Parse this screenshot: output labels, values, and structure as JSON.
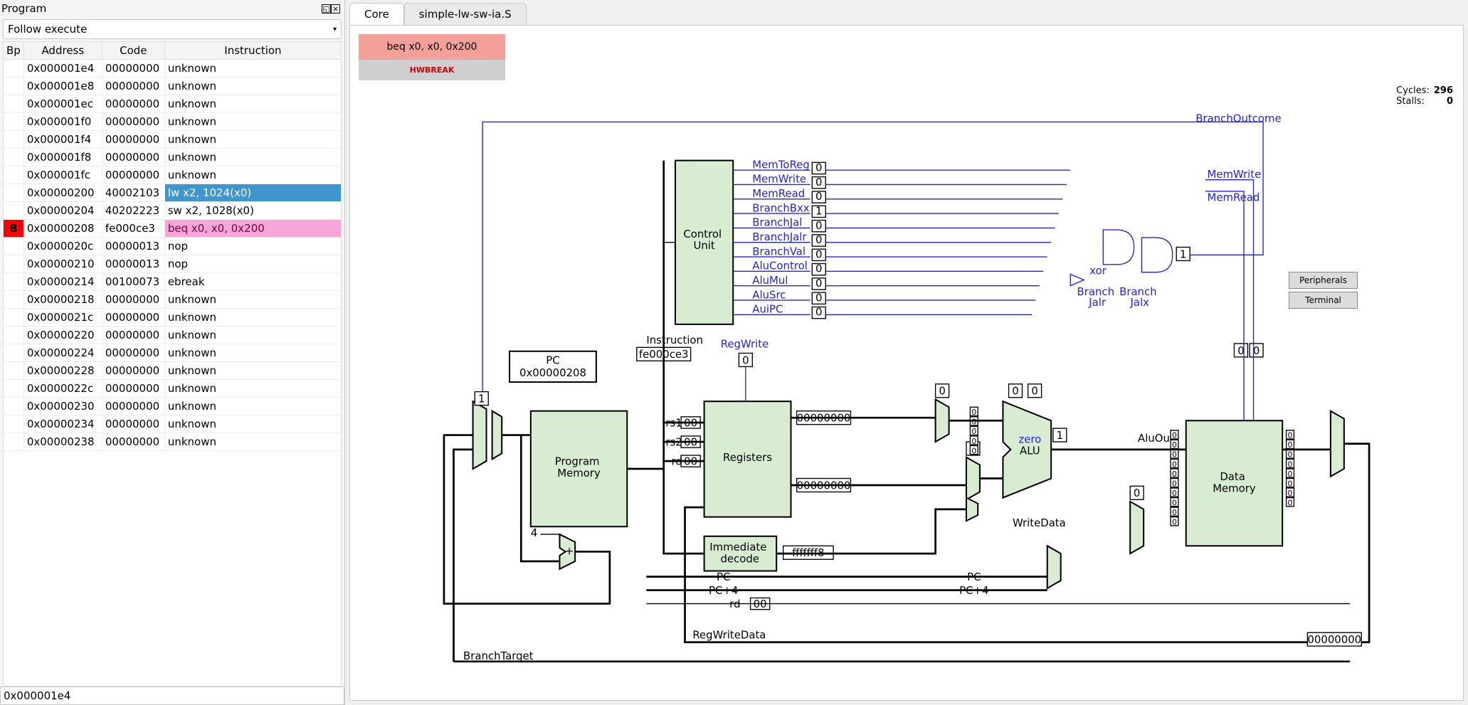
{
  "left_panel": {
    "title": "Program",
    "follow_selected": "Follow execute",
    "headers": {
      "bp": "Bp",
      "addr": "Address",
      "code": "Code",
      "instr": "Instruction"
    },
    "rows": [
      {
        "bp": "",
        "addr": "0x000001e4",
        "code": "00000000",
        "instr": "unknown",
        "hl": ""
      },
      {
        "bp": "",
        "addr": "0x000001e8",
        "code": "00000000",
        "instr": "unknown",
        "hl": ""
      },
      {
        "bp": "",
        "addr": "0x000001ec",
        "code": "00000000",
        "instr": "unknown",
        "hl": ""
      },
      {
        "bp": "",
        "addr": "0x000001f0",
        "code": "00000000",
        "instr": "unknown",
        "hl": ""
      },
      {
        "bp": "",
        "addr": "0x000001f4",
        "code": "00000000",
        "instr": "unknown",
        "hl": ""
      },
      {
        "bp": "",
        "addr": "0x000001f8",
        "code": "00000000",
        "instr": "unknown",
        "hl": ""
      },
      {
        "bp": "",
        "addr": "0x000001fc",
        "code": "00000000",
        "instr": "unknown",
        "hl": ""
      },
      {
        "bp": "",
        "addr": "0x00000200",
        "code": "40002103",
        "instr": "lw x2, 1024(x0)",
        "hl": "blue"
      },
      {
        "bp": "",
        "addr": "0x00000204",
        "code": "40202223",
        "instr": "sw x2, 1028(x0)",
        "hl": ""
      },
      {
        "bp": "B",
        "addr": "0x00000208",
        "code": "fe000ce3",
        "instr": "beq x0, x0, 0x200",
        "hl": "pink"
      },
      {
        "bp": "",
        "addr": "0x0000020c",
        "code": "00000013",
        "instr": "nop",
        "hl": ""
      },
      {
        "bp": "",
        "addr": "0x00000210",
        "code": "00000013",
        "instr": "nop",
        "hl": ""
      },
      {
        "bp": "",
        "addr": "0x00000214",
        "code": "00100073",
        "instr": "ebreak",
        "hl": ""
      },
      {
        "bp": "",
        "addr": "0x00000218",
        "code": "00000000",
        "instr": "unknown",
        "hl": ""
      },
      {
        "bp": "",
        "addr": "0x0000021c",
        "code": "00000000",
        "instr": "unknown",
        "hl": ""
      },
      {
        "bp": "",
        "addr": "0x00000220",
        "code": "00000000",
        "instr": "unknown",
        "hl": ""
      },
      {
        "bp": "",
        "addr": "0x00000224",
        "code": "00000000",
        "instr": "unknown",
        "hl": ""
      },
      {
        "bp": "",
        "addr": "0x00000228",
        "code": "00000000",
        "instr": "unknown",
        "hl": ""
      },
      {
        "bp": "",
        "addr": "0x0000022c",
        "code": "00000000",
        "instr": "unknown",
        "hl": ""
      },
      {
        "bp": "",
        "addr": "0x00000230",
        "code": "00000000",
        "instr": "unknown",
        "hl": ""
      },
      {
        "bp": "",
        "addr": "0x00000234",
        "code": "00000000",
        "instr": "unknown",
        "hl": ""
      },
      {
        "bp": "",
        "addr": "0x00000238",
        "code": "00000000",
        "instr": "unknown",
        "hl": ""
      }
    ],
    "bottom_value": "0x000001e4"
  },
  "tabs": {
    "active": "Core",
    "other": "simple-lw-sw-ia.S"
  },
  "banner": {
    "current_instr": "beq x0, x0, 0x200",
    "status": "HWBREAK"
  },
  "stats": {
    "cycles_label": "Cycles:",
    "cycles": "296",
    "stalls_label": "Stalls:",
    "stalls": "0"
  },
  "peripherals": {
    "p": "Peripherals",
    "t": "Terminal"
  },
  "diagram": {
    "colors": {
      "block_fill": "#d8ecd2",
      "wire_blue": "#2020f0",
      "wire_black": "#000000",
      "bg": "#ffffff",
      "banner_instr": "#f3a09a",
      "banner_hw": "#cfcfcf",
      "banner_hw_text": "#d00000"
    },
    "pc": {
      "label": "PC",
      "value": "0x00000208"
    },
    "blocks": {
      "control_unit": "Control\nUnit",
      "program_memory": "Program\nMemory",
      "registers": "Registers",
      "immediate_decode": "Immediate\ndecode",
      "alu": "ALU",
      "data_memory": "Data\nMemory"
    },
    "signals": {
      "control_out": [
        "MemToReg",
        "MemWrite",
        "MemRead",
        "BranchBxx",
        "BranchJal",
        "BranchJalr",
        "BranchVal",
        "AluControl",
        "AluMul",
        "AluSrc",
        "AuiPC"
      ],
      "instruction": "Instruction",
      "regwrite": "RegWrite",
      "rs1": "rs1",
      "rs2": "rs2",
      "rd": "rd",
      "zero": "zero",
      "writedata": "WriteData",
      "aluout": "AluOut",
      "pc": "PC",
      "pc4": "PC+4",
      "regwritedata": "RegWriteData",
      "branchtarget": "BranchTarget",
      "branchoutcome": "BranchOutcome",
      "memwrite": "MemWrite",
      "memread": "MemRead",
      "branch_jalr": "Branch\nJalr",
      "branch_jalx": "Branch\nJalx",
      "xor": "xor"
    },
    "value_boxes": {
      "control_bits": [
        "0",
        "0",
        "0",
        "1",
        "0",
        "0",
        "0",
        "0",
        "0",
        "0",
        "0"
      ],
      "instruction": "fe000ce3",
      "regwrite": "0",
      "rs1": "00",
      "rs2": "00",
      "rd": "00",
      "reg_out1": "00000000",
      "reg_out2": "00000000",
      "imm_out": "fffffff8",
      "mux_sel_top": "1",
      "alu_zero": "1",
      "alu_in_sel": "0",
      "alu_ctrl_bits": [
        "0",
        "0"
      ],
      "alu_out": "00000000",
      "writedata": "0",
      "aluout_box": "00000000",
      "mem_in": "00000000",
      "mem_out": "00000000",
      "branch_gate_out": "1",
      "pc_rd": "00",
      "four": "4",
      "writeback": "00000000",
      "writeback_sel": [
        "0",
        "0"
      ]
    }
  }
}
